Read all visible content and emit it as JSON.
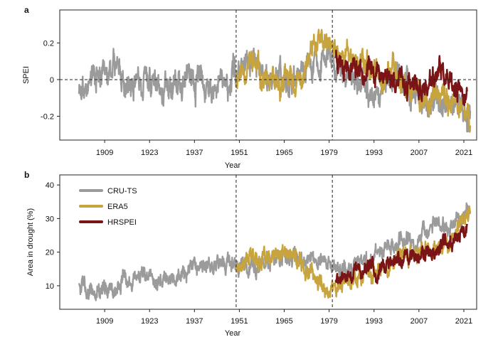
{
  "chart_data": [
    {
      "panel": "a",
      "type": "line",
      "xlabel": "Year",
      "ylabel": "SPEI",
      "xlim": [
        1895,
        2025
      ],
      "ylim": [
        -0.33,
        0.38
      ],
      "xticks": [
        1909,
        1923,
        1937,
        1951,
        1965,
        1979,
        1993,
        2007,
        2021
      ],
      "yticks": [
        -0.2,
        0,
        0.2
      ],
      "ytick_labels": [
        "-0.2",
        "0",
        "0.2"
      ],
      "reference_lines": {
        "vertical": [
          1950,
          1980
        ],
        "horizontal": [
          0
        ],
        "style": "dashed"
      },
      "series": [
        {
          "name": "CRU-TS",
          "color": "#9b9b9b",
          "start": 1901,
          "end": 2023,
          "anchors": [
            [
              1901,
              -0.06
            ],
            [
              1905,
              0.02
            ],
            [
              1910,
              0.01
            ],
            [
              1913,
              0.12
            ],
            [
              1915,
              -0.02
            ],
            [
              1920,
              -0.01
            ],
            [
              1925,
              0.0
            ],
            [
              1930,
              -0.04
            ],
            [
              1935,
              0.02
            ],
            [
              1940,
              -0.02
            ],
            [
              1945,
              -0.03
            ],
            [
              1950,
              0.02
            ],
            [
              1955,
              0.14
            ],
            [
              1960,
              0.02
            ],
            [
              1965,
              0.02
            ],
            [
              1970,
              0.0
            ],
            [
              1975,
              0.12
            ],
            [
              1980,
              0.14
            ],
            [
              1985,
              0.0
            ],
            [
              1990,
              -0.08
            ],
            [
              1995,
              -0.04
            ],
            [
              2000,
              0.02
            ],
            [
              2005,
              -0.08
            ],
            [
              2010,
              -0.12
            ],
            [
              2015,
              -0.1
            ],
            [
              2020,
              -0.12
            ],
            [
              2023,
              -0.18
            ]
          ],
          "amplitude": 0.09,
          "seed": 3
        },
        {
          "name": "ERA5",
          "color": "#c8a43e",
          "start": 1950,
          "end": 2023,
          "anchors": [
            [
              1950,
              0.02
            ],
            [
              1955,
              0.1
            ],
            [
              1958,
              0.02
            ],
            [
              1962,
              -0.06
            ],
            [
              1966,
              0.0
            ],
            [
              1970,
              -0.04
            ],
            [
              1973,
              0.12
            ],
            [
              1976,
              0.2
            ],
            [
              1980,
              0.16
            ],
            [
              1985,
              0.14
            ],
            [
              1990,
              0.08
            ],
            [
              1994,
              0.04
            ],
            [
              1998,
              0.06
            ],
            [
              2003,
              -0.02
            ],
            [
              2008,
              -0.1
            ],
            [
              2012,
              -0.1
            ],
            [
              2016,
              -0.12
            ],
            [
              2020,
              -0.16
            ],
            [
              2023,
              -0.22
            ]
          ],
          "amplitude": 0.08,
          "seed": 11
        },
        {
          "name": "HRSPEI",
          "color": "#7b1416",
          "start": 1981,
          "end": 2022,
          "anchors": [
            [
              1981,
              0.14
            ],
            [
              1985,
              0.08
            ],
            [
              1990,
              0.06
            ],
            [
              1995,
              0.04
            ],
            [
              2000,
              0.0
            ],
            [
              2004,
              -0.04
            ],
            [
              2008,
              -0.06
            ],
            [
              2011,
              -0.02
            ],
            [
              2014,
              0.06
            ],
            [
              2016,
              -0.04
            ],
            [
              2019,
              -0.08
            ],
            [
              2022,
              -0.06
            ]
          ],
          "amplitude": 0.07,
          "seed": 23
        }
      ]
    },
    {
      "panel": "b",
      "type": "line",
      "xlabel": "Year",
      "ylabel": "Area in drought (%)",
      "xlim": [
        1895,
        2025
      ],
      "ylim": [
        3,
        43
      ],
      "xticks": [
        1909,
        1923,
        1937,
        1951,
        1965,
        1979,
        1993,
        2007,
        2021
      ],
      "yticks": [
        10,
        20,
        30,
        40
      ],
      "ytick_labels": [
        "10",
        "20",
        "30",
        "40"
      ],
      "reference_lines": {
        "vertical": [
          1950,
          1980
        ],
        "style": "dashed"
      },
      "legend": {
        "position": "top-left",
        "entries": [
          "CRU-TS",
          "ERA5",
          "HRSPEI"
        ]
      },
      "series": [
        {
          "name": "CRU-TS",
          "color": "#9b9b9b",
          "start": 1901,
          "end": 2023,
          "anchors": [
            [
              1901,
              11
            ],
            [
              1905,
              9
            ],
            [
              1910,
              9
            ],
            [
              1915,
              11
            ],
            [
              1920,
              12
            ],
            [
              1925,
              11
            ],
            [
              1930,
              13
            ],
            [
              1935,
              14
            ],
            [
              1940,
              16
            ],
            [
              1945,
              17
            ],
            [
              1950,
              16
            ],
            [
              1955,
              15
            ],
            [
              1960,
              17
            ],
            [
              1965,
              18
            ],
            [
              1970,
              18
            ],
            [
              1975,
              18
            ],
            [
              1980,
              15
            ],
            [
              1985,
              15
            ],
            [
              1990,
              17
            ],
            [
              1995,
              20
            ],
            [
              2000,
              22
            ],
            [
              2005,
              24
            ],
            [
              2010,
              27
            ],
            [
              2015,
              29
            ],
            [
              2020,
              31
            ],
            [
              2023,
              33
            ]
          ],
          "amplitude": 3.2,
          "seed": 5
        },
        {
          "name": "ERA5",
          "color": "#c8a43e",
          "start": 1950,
          "end": 2023,
          "anchors": [
            [
              1950,
              16
            ],
            [
              1955,
              19
            ],
            [
              1960,
              17
            ],
            [
              1965,
              20
            ],
            [
              1970,
              17
            ],
            [
              1975,
              12
            ],
            [
              1978,
              9
            ],
            [
              1982,
              10
            ],
            [
              1985,
              12
            ],
            [
              1990,
              13
            ],
            [
              1995,
              14
            ],
            [
              2000,
              18
            ],
            [
              2005,
              19
            ],
            [
              2010,
              21
            ],
            [
              2015,
              22
            ],
            [
              2020,
              28
            ],
            [
              2023,
              32
            ]
          ],
          "amplitude": 3.0,
          "seed": 17
        },
        {
          "name": "HRSPEI",
          "color": "#7b1416",
          "start": 1981,
          "end": 2022,
          "anchors": [
            [
              1981,
              11
            ],
            [
              1985,
              13
            ],
            [
              1990,
              15
            ],
            [
              1995,
              15
            ],
            [
              2000,
              17
            ],
            [
              2005,
              19
            ],
            [
              2010,
              20
            ],
            [
              2015,
              22
            ],
            [
              2020,
              26
            ],
            [
              2022,
              28
            ]
          ],
          "amplitude": 2.8,
          "seed": 29
        }
      ]
    }
  ]
}
